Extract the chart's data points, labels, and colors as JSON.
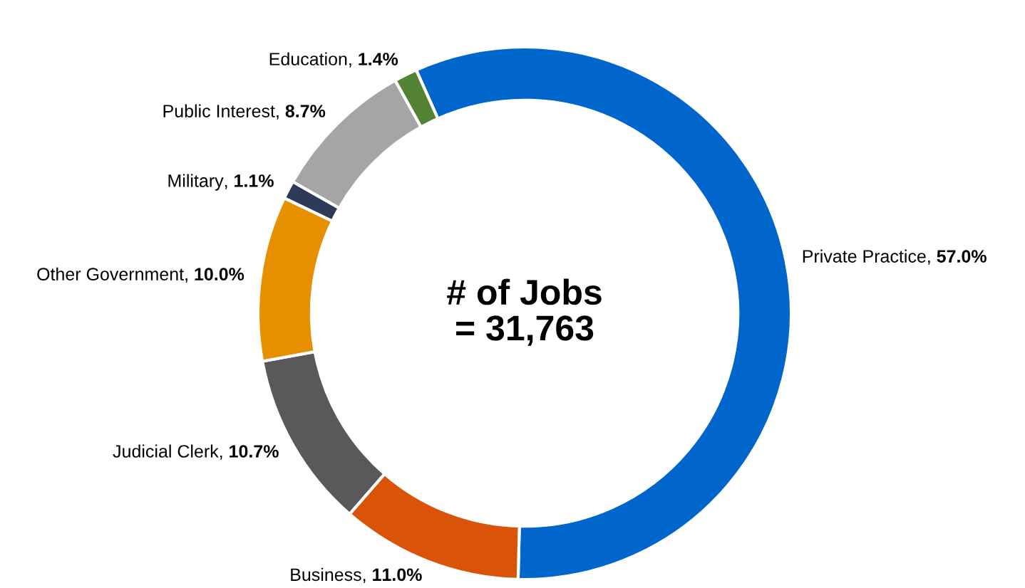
{
  "chart_data": {
    "type": "donut",
    "categories": [
      "Private Practice",
      "Business",
      "Judicial Clerk",
      "Other Government",
      "Military",
      "Public Interest",
      "Education"
    ],
    "values": [
      57.0,
      11.0,
      10.7,
      10.0,
      1.1,
      8.7,
      1.4
    ],
    "colors": [
      "#0066cc",
      "#d95409",
      "#595959",
      "#e68f00",
      "#2e3b56",
      "#a5a5a5",
      "#548235"
    ],
    "value_labels": [
      "57.0%",
      "11.0%",
      "10.7%",
      "10.0%",
      "1.1%",
      "8.7%",
      "1.4%"
    ],
    "annotations": [
      "# of Jobs\n= 31,763"
    ],
    "legend": false
  }
}
